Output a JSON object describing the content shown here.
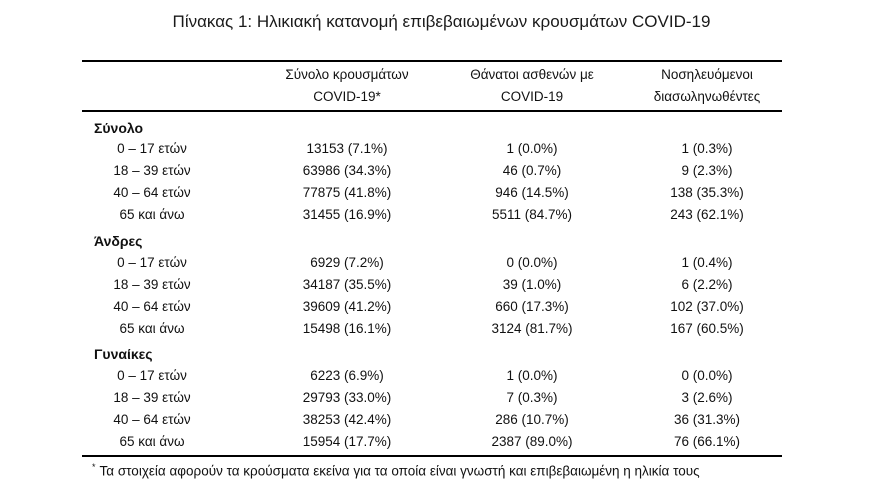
{
  "title": "Πίνακας 1: Ηλικιακή κατανομή επιβεβαιωμένων κρουσμάτων COVID-19",
  "headers": {
    "col1": "Σύνολο κρουσμάτων COVID-19*",
    "col2": "Θάνατοι ασθενών με COVID-19",
    "col3": "Νοσηλευόμενοι διασωληνωθέντες"
  },
  "groups": [
    {
      "name": "Σύνολο",
      "rows": [
        {
          "age": "0 – 17 ετών",
          "cases": "13153 (7.1%)",
          "deaths": "1 (0.0%)",
          "icu": "1 (0.3%)"
        },
        {
          "age": "18 – 39 ετών",
          "cases": "63986 (34.3%)",
          "deaths": "46 (0.7%)",
          "icu": "9 (2.3%)"
        },
        {
          "age": "40 – 64 ετών",
          "cases": "77875 (41.8%)",
          "deaths": "946 (14.5%)",
          "icu": "138 (35.3%)"
        },
        {
          "age": "65 και άνω",
          "cases": "31455 (16.9%)",
          "deaths": "5511 (84.7%)",
          "icu": "243 (62.1%)"
        }
      ]
    },
    {
      "name": "Άνδρες",
      "rows": [
        {
          "age": "0 – 17 ετών",
          "cases": "6929 (7.2%)",
          "deaths": "0 (0.0%)",
          "icu": "1 (0.4%)"
        },
        {
          "age": "18 – 39 ετών",
          "cases": "34187 (35.5%)",
          "deaths": "39 (1.0%)",
          "icu": "6 (2.2%)"
        },
        {
          "age": "40 – 64 ετών",
          "cases": "39609 (41.2%)",
          "deaths": "660 (17.3%)",
          "icu": "102 (37.0%)"
        },
        {
          "age": "65 και άνω",
          "cases": "15498 (16.1%)",
          "deaths": "3124 (81.7%)",
          "icu": "167 (60.5%)"
        }
      ]
    },
    {
      "name": "Γυναίκες",
      "rows": [
        {
          "age": "0 – 17 ετών",
          "cases": "6223 (6.9%)",
          "deaths": "1 (0.0%)",
          "icu": "0 (0.0%)"
        },
        {
          "age": "18 – 39 ετών",
          "cases": "29793 (33.0%)",
          "deaths": "7 (0.3%)",
          "icu": "3 (2.6%)"
        },
        {
          "age": "40 – 64 ετών",
          "cases": "38253 (42.4%)",
          "deaths": "286 (10.7%)",
          "icu": "36 (31.3%)"
        },
        {
          "age": "65 και άνω",
          "cases": "15954 (17.7%)",
          "deaths": "2387 (89.0%)",
          "icu": "76 (66.1%)"
        }
      ]
    }
  ],
  "footnote": {
    "marker": "*",
    "text": "Τα στοιχεία αφορούν τα κρούσματα εκείνα για τα οποία είναι γνωστή και επιβεβαιωμένη η ηλικία τους"
  }
}
